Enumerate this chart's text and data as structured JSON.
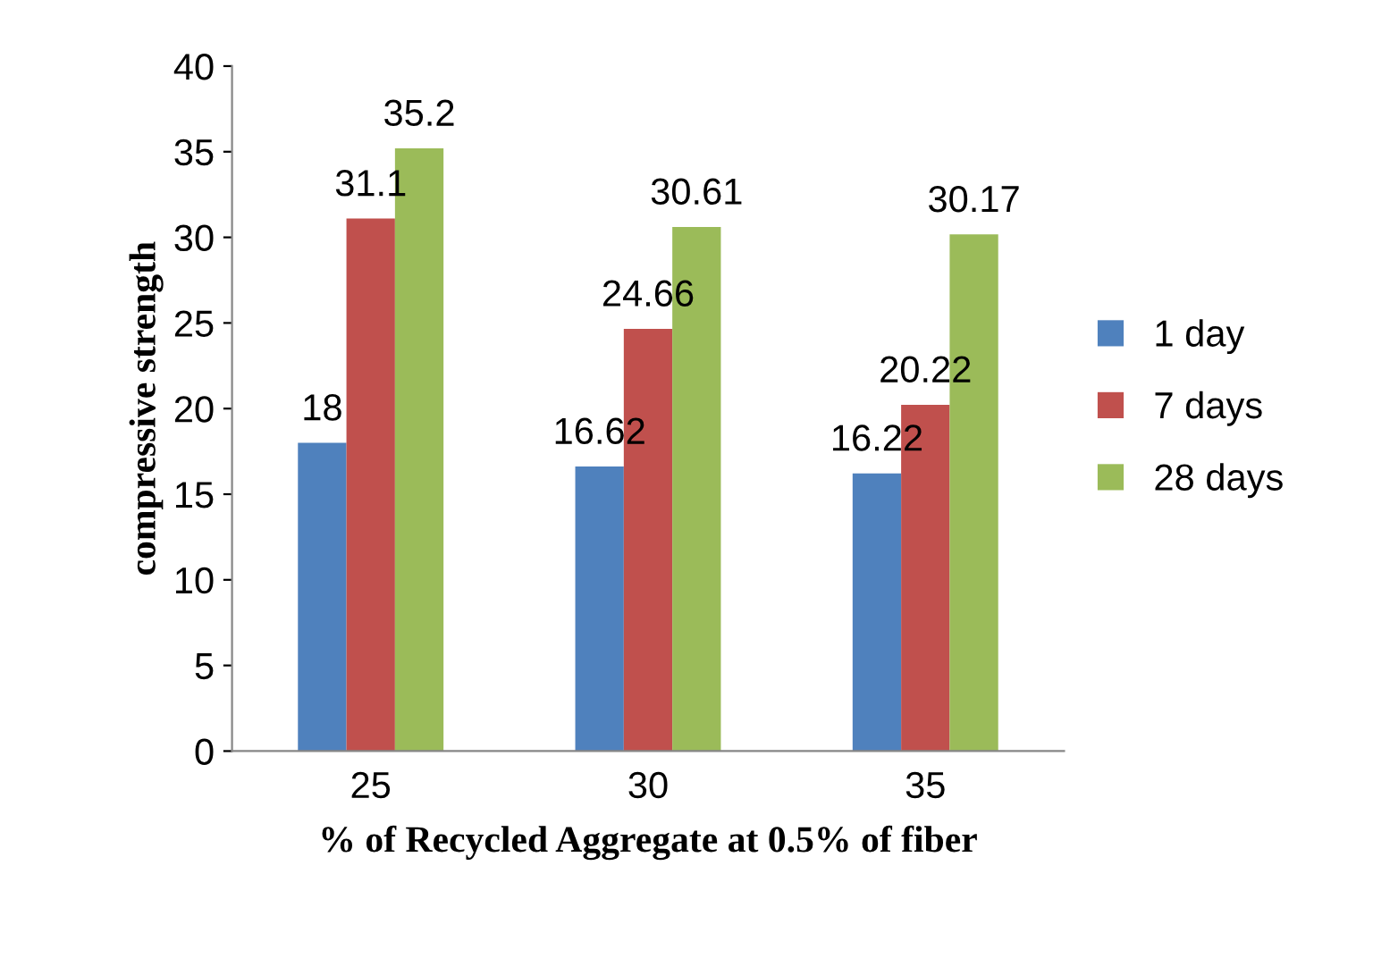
{
  "chart_data": {
    "type": "bar",
    "xlabel": "% of Recycled Aggregate at 0.5% of fiber",
    "ylabel": "compressive strength",
    "categories": [
      "25",
      "30",
      "35"
    ],
    "series": [
      {
        "name": "1 day",
        "color": "#4f81bd",
        "values": [
          18,
          16.62,
          16.22
        ]
      },
      {
        "name": "7 days",
        "color": "#c0504d",
        "values": [
          31.1,
          24.66,
          20.22
        ]
      },
      {
        "name": "28 days",
        "color": "#9bbb59",
        "values": [
          35.2,
          30.61,
          30.17
        ]
      }
    ],
    "ylim": [
      0,
      40
    ],
    "yticks": [
      0,
      5,
      10,
      15,
      20,
      25,
      30,
      35,
      40
    ],
    "grid": false,
    "legend": "right",
    "data_labels": true
  }
}
